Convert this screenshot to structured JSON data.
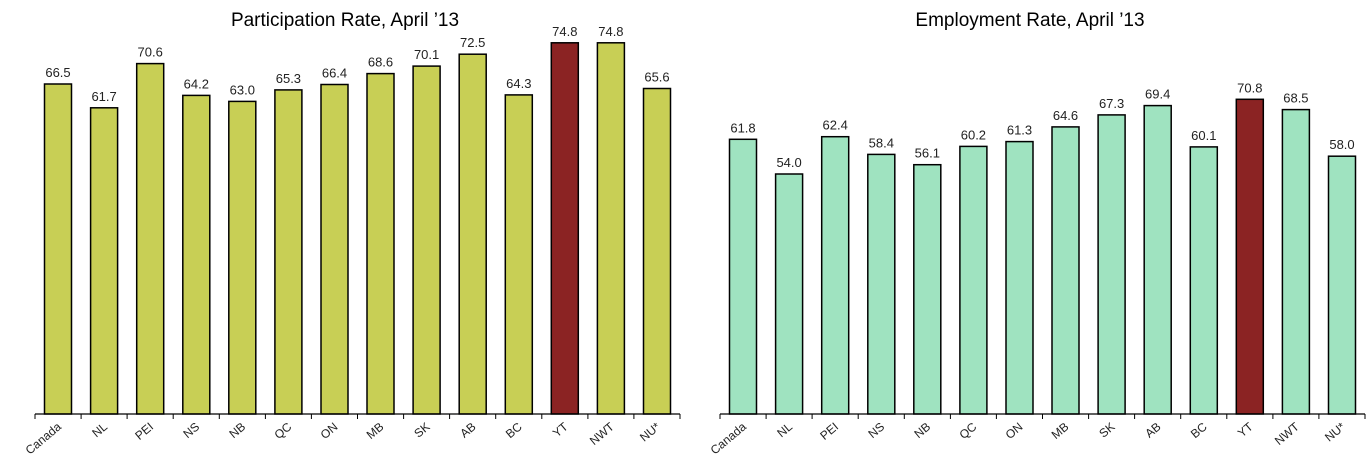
{
  "chart_data": [
    {
      "type": "bar",
      "title": "Participation Rate, April ’13",
      "categories": [
        "Canada",
        "NL",
        "PEI",
        "NS",
        "NB",
        "QC",
        "ON",
        "MB",
        "SK",
        "AB",
        "BC",
        "YT",
        "NWT",
        "NU*"
      ],
      "values": [
        66.5,
        61.7,
        70.6,
        64.2,
        63.0,
        65.3,
        66.4,
        68.6,
        70.1,
        72.5,
        64.3,
        74.8,
        74.8,
        65.6
      ],
      "value_labels": [
        "66.5",
        "61.7",
        "70.6",
        "64.2",
        "63.0",
        "65.3",
        "66.4",
        "68.6",
        "70.1",
        "72.5",
        "64.3",
        "74.8",
        "74.8",
        "65.6"
      ],
      "ylim": [
        0,
        80
      ],
      "grid": false,
      "colors": {
        "bar": "#c8cf55",
        "highlight": "#8b2323",
        "outline": "#000000"
      },
      "highlight_index": 11
    },
    {
      "type": "bar",
      "title": "Employment Rate, April ’13",
      "categories": [
        "Canada",
        "NL",
        "PEI",
        "NS",
        "NB",
        "QC",
        "ON",
        "MB",
        "SK",
        "AB",
        "BC",
        "YT",
        "NWT",
        "NU*"
      ],
      "values": [
        61.8,
        54.0,
        62.4,
        58.4,
        56.1,
        60.2,
        61.3,
        64.6,
        67.3,
        69.4,
        60.1,
        70.8,
        68.5,
        58.0
      ],
      "value_labels": [
        "61.8",
        "54.0",
        "62.4",
        "58.4",
        "56.1",
        "60.2",
        "61.3",
        "64.6",
        "67.3",
        "69.4",
        "60.1",
        "70.8",
        "68.5",
        "58.0"
      ],
      "ylim": [
        0,
        90
      ],
      "grid": false,
      "colors": {
        "bar": "#9fe3c0",
        "highlight": "#8b2323",
        "outline": "#000000"
      },
      "highlight_index": 11
    }
  ]
}
